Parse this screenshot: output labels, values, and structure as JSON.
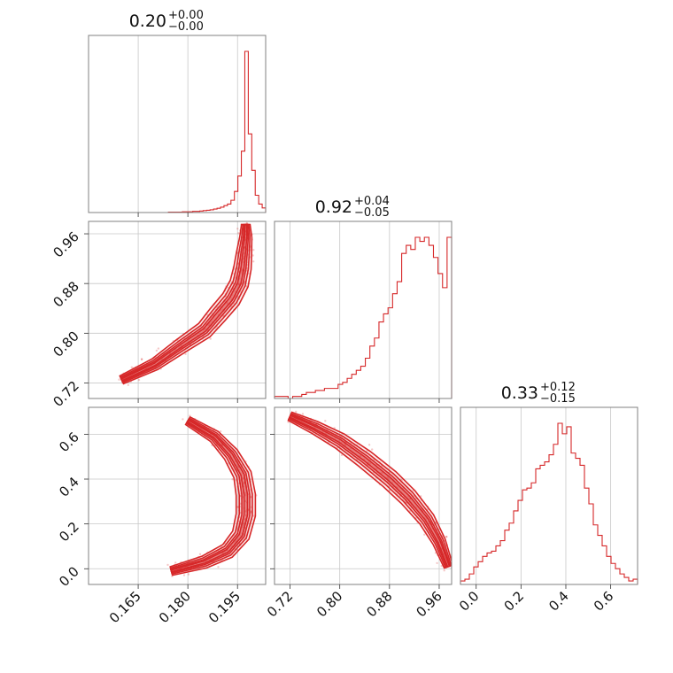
{
  "chart_data": {
    "type": "corner",
    "color": "#d62728",
    "grid": true,
    "parameters": [
      {
        "title_value": "0.20",
        "title_plus": "+0.00",
        "title_minus": "−0.00",
        "range": [
          0.15,
          0.2035
        ],
        "ticks": [
          0.165,
          0.18,
          0.195
        ],
        "tick_labels": [
          "0.165",
          "0.180",
          "0.195"
        ]
      },
      {
        "title_value": "0.92",
        "title_plus": "+0.04",
        "title_minus": "−0.05",
        "range": [
          0.695,
          0.98
        ],
        "ticks": [
          0.72,
          0.8,
          0.88,
          0.96
        ],
        "tick_labels": [
          "0.72",
          "0.80",
          "0.88",
          "0.96"
        ]
      },
      {
        "title_value": "0.33",
        "title_plus": "+0.12",
        "title_minus": "−0.15",
        "range": [
          -0.07,
          0.72
        ],
        "ticks": [
          0.0,
          0.2,
          0.4,
          0.6
        ],
        "tick_labels": [
          "0.0",
          "0.2",
          "0.4",
          "0.6"
        ]
      }
    ],
    "histograms": [
      {
        "bin_edges": [
          0.15,
          0.2035
        ],
        "counts": [
          0,
          0,
          0,
          0,
          0,
          0,
          0,
          0,
          0,
          0,
          0,
          0,
          0,
          0,
          0,
          0,
          0,
          0,
          0,
          0,
          0,
          0,
          0,
          1,
          1,
          1,
          1,
          2,
          2,
          2,
          3,
          3,
          4,
          5,
          6,
          7,
          9,
          11,
          14,
          18,
          22,
          32,
          55,
          95,
          160,
          420,
          205,
          110,
          45,
          22,
          12
        ]
      },
      {
        "bin_edges": [
          0.695,
          0.98
        ],
        "counts": [
          1,
          1,
          1,
          0,
          1,
          1,
          2,
          3,
          3,
          4,
          4,
          5,
          5,
          5,
          7,
          8,
          10,
          12,
          14,
          16,
          20,
          26,
          30,
          38,
          42,
          45,
          52,
          58,
          72,
          76,
          74,
          80,
          78,
          80,
          76,
          70,
          62,
          55,
          80
        ]
      },
      {
        "bin_edges": [
          -0.07,
          0.72
        ],
        "counts": [
          2,
          3,
          6,
          10,
          13,
          16,
          18,
          19,
          22,
          25,
          31,
          35,
          42,
          48,
          54,
          55,
          58,
          66,
          68,
          70,
          74,
          80,
          92,
          86,
          90,
          75,
          72,
          68,
          55,
          46,
          34,
          28,
          22,
          16,
          12,
          9,
          6,
          4,
          2,
          3
        ]
      }
    ],
    "pairs": [
      {
        "x_param": 0,
        "y_param": 1,
        "ridge": [
          [
            0.1975,
            0.975
          ],
          [
            0.1975,
            0.955
          ],
          [
            0.197,
            0.93
          ],
          [
            0.1965,
            0.905
          ],
          [
            0.1955,
            0.88
          ],
          [
            0.193,
            0.855
          ],
          [
            0.189,
            0.83
          ],
          [
            0.185,
            0.805
          ],
          [
            0.178,
            0.78
          ],
          [
            0.17,
            0.75
          ],
          [
            0.16,
            0.725
          ]
        ]
      },
      {
        "x_param": 0,
        "y_param": 2,
        "ridge": [
          [
            0.18,
            0.66
          ],
          [
            0.188,
            0.59
          ],
          [
            0.193,
            0.51
          ],
          [
            0.1965,
            0.42
          ],
          [
            0.1975,
            0.33
          ],
          [
            0.1975,
            0.24
          ],
          [
            0.196,
            0.15
          ],
          [
            0.192,
            0.08
          ],
          [
            0.185,
            0.03
          ],
          [
            0.175,
            -0.01
          ]
        ]
      },
      {
        "x_param": 1,
        "y_param": 2,
        "ridge": [
          [
            0.72,
            0.68
          ],
          [
            0.76,
            0.63
          ],
          [
            0.8,
            0.57
          ],
          [
            0.84,
            0.49
          ],
          [
            0.88,
            0.4
          ],
          [
            0.91,
            0.32
          ],
          [
            0.94,
            0.22
          ],
          [
            0.96,
            0.12
          ],
          [
            0.975,
            0.01
          ]
        ]
      }
    ]
  }
}
